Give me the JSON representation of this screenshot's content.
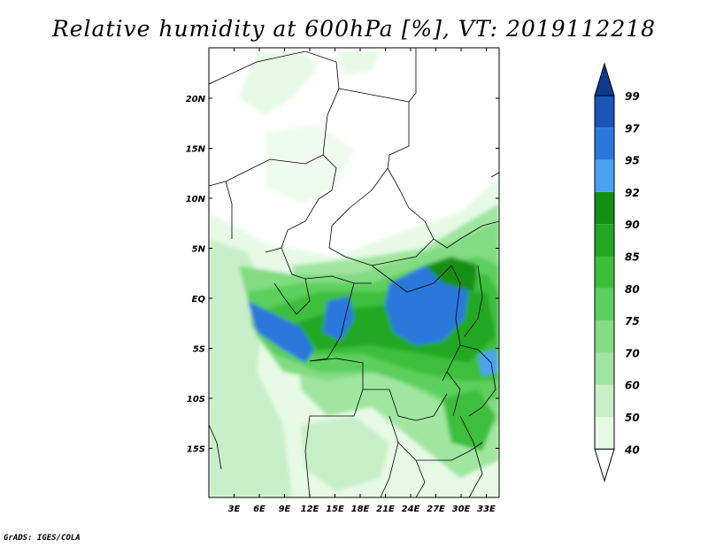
{
  "title": "Relative humidity at 600hPa [%], VT: 2019112218",
  "credit": "GrADS: IGES/COLA",
  "map": {
    "lat_labels": [
      {
        "text": "20N",
        "lat": 20
      },
      {
        "text": "15N",
        "lat": 15
      },
      {
        "text": "10N",
        "lat": 10
      },
      {
        "text": "5N",
        "lat": 5
      },
      {
        "text": "EQ",
        "lat": 0
      },
      {
        "text": "5S",
        "lat": -5
      },
      {
        "text": "10S",
        "lat": -10
      },
      {
        "text": "15S",
        "lat": -15
      }
    ],
    "lon_labels": [
      {
        "text": "3E",
        "lon": 3
      },
      {
        "text": "6E",
        "lon": 6
      },
      {
        "text": "9E",
        "lon": 9
      },
      {
        "text": "12E",
        "lon": 12
      },
      {
        "text": "15E",
        "lon": 15
      },
      {
        "text": "18E",
        "lon": 18
      },
      {
        "text": "21E",
        "lon": 21
      },
      {
        "text": "24E",
        "lon": 24
      },
      {
        "text": "27E",
        "lon": 27
      },
      {
        "text": "30E",
        "lon": 30
      },
      {
        "text": "33E",
        "lon": 33
      }
    ]
  },
  "colorbar": {
    "levels": [
      "40",
      "50",
      "60",
      "70",
      "75",
      "80",
      "85",
      "90",
      "92",
      "95",
      "97",
      "99"
    ],
    "colors": [
      "#ffffff",
      "#e6fae6",
      "#c8f0c8",
      "#a0e6a0",
      "#82dc82",
      "#5ccf5c",
      "#3cbe3c",
      "#22a822",
      "#138f13",
      "#4aa3f0",
      "#2a78dc",
      "#1a55b8",
      "#0e3a8e"
    ]
  }
}
